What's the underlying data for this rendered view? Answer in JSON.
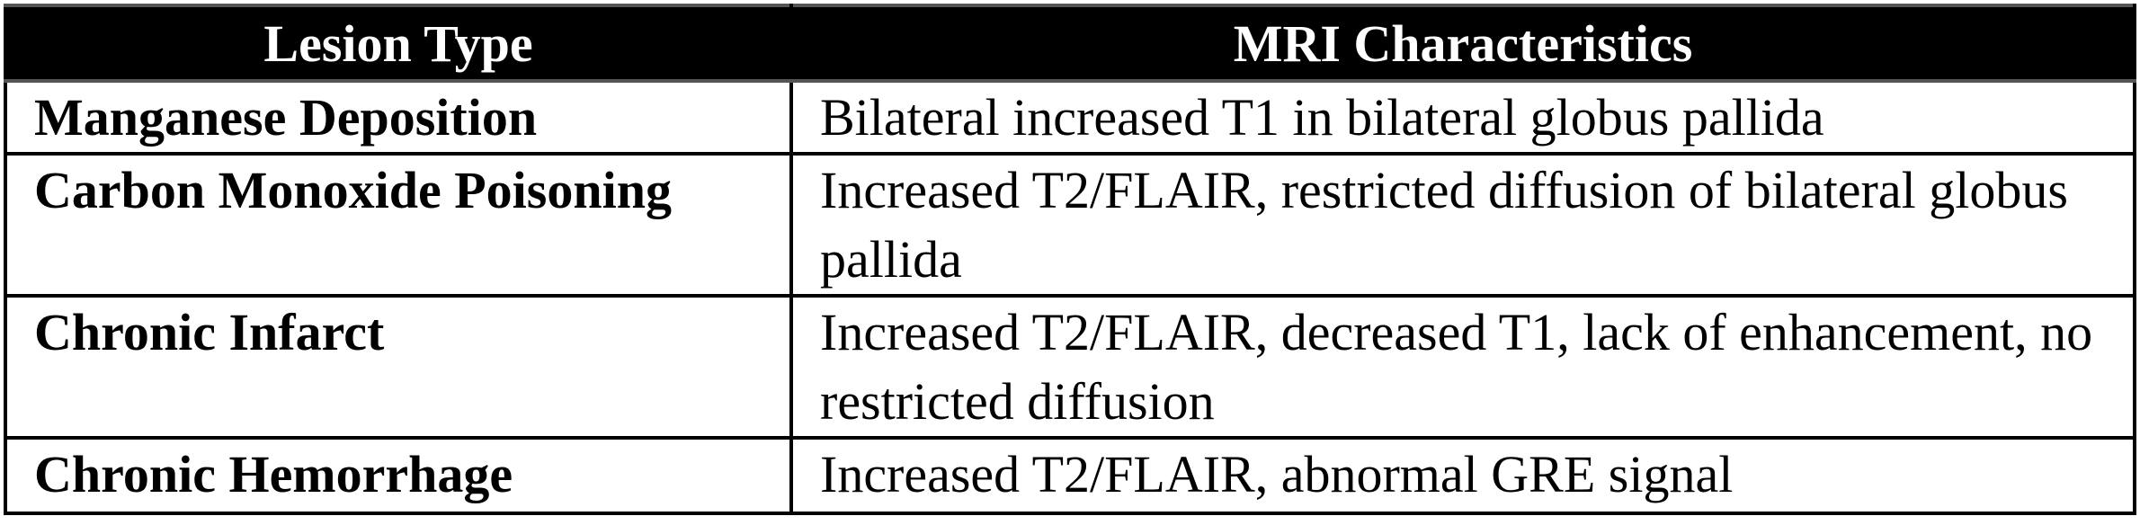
{
  "table": {
    "headers": [
      "Lesion Type",
      "MRI Characteristics"
    ],
    "rows": [
      {
        "type": "Manganese Deposition",
        "mri": "Bilateral increased T1 in bilateral globus pallida"
      },
      {
        "type": "Carbon Monoxide Poisoning",
        "mri": "Increased T2/FLAIR, restricted diffusion of bilateral globus pallida"
      },
      {
        "type": "Chronic Infarct",
        "mri": "Increased T2/FLAIR, decreased T1, lack of enhancement, no restricted diffusion"
      },
      {
        "type": "Chronic Hemorrhage",
        "mri": "Increased T2/FLAIR, abnormal GRE signal"
      }
    ]
  }
}
